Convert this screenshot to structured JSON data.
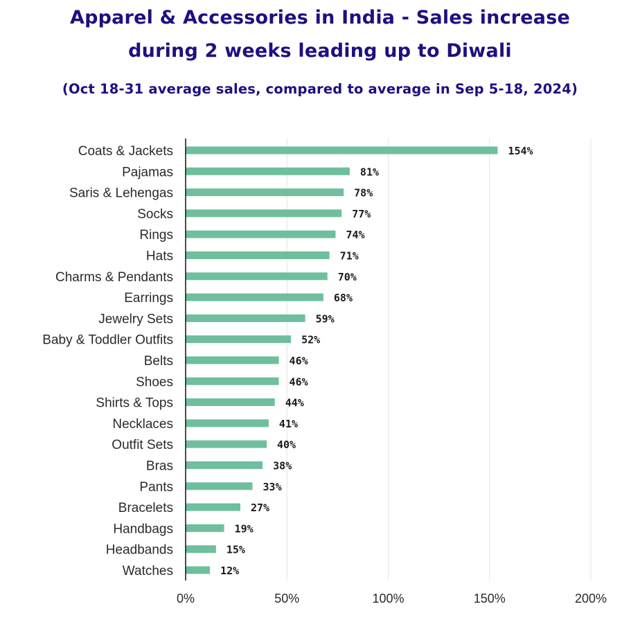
{
  "chart_data": {
    "type": "bar",
    "orientation": "horizontal",
    "title": "Apparel & Accessories in India - Sales increase during 2 weeks leading up to Diwali",
    "title_lines": [
      "Apparel & Accessories in India - Sales increase",
      "during 2 weeks leading up to Diwali"
    ],
    "subtitle": "(Oct 18-31 average sales, compared to average in Sep 5-18, 2024)",
    "xlabel": "",
    "ylabel": "",
    "xlim": [
      0,
      200
    ],
    "xticks": [
      0,
      50,
      100,
      150,
      200
    ],
    "xtick_labels": [
      "0%",
      "50%",
      "100%",
      "150%",
      "200%"
    ],
    "grid": true,
    "categories": [
      "Coats & Jackets",
      "Pajamas",
      "Saris & Lehengas",
      "Socks",
      "Rings",
      "Hats",
      "Charms & Pendants",
      "Earrings",
      "Jewelry Sets",
      "Baby & Toddler Outfits",
      "Belts",
      "Shoes",
      "Shirts & Tops",
      "Necklaces",
      "Outfit Sets",
      "Bras",
      "Pants",
      "Bracelets",
      "Handbags",
      "Headbands",
      "Watches"
    ],
    "values": [
      154,
      81,
      78,
      77,
      74,
      71,
      70,
      68,
      59,
      52,
      46,
      46,
      44,
      41,
      40,
      38,
      33,
      27,
      19,
      15,
      12
    ],
    "value_labels": [
      "154%",
      "81%",
      "78%",
      "77%",
      "74%",
      "71%",
      "70%",
      "68%",
      "59%",
      "52%",
      "46%",
      "46%",
      "44%",
      "41%",
      "40%",
      "38%",
      "33%",
      "27%",
      "19%",
      "15%",
      "12%"
    ],
    "colors": {
      "bar": "#6fbf9c",
      "title": "#1d1080",
      "grid": "#e3e3e3",
      "axis": "#111111"
    }
  }
}
